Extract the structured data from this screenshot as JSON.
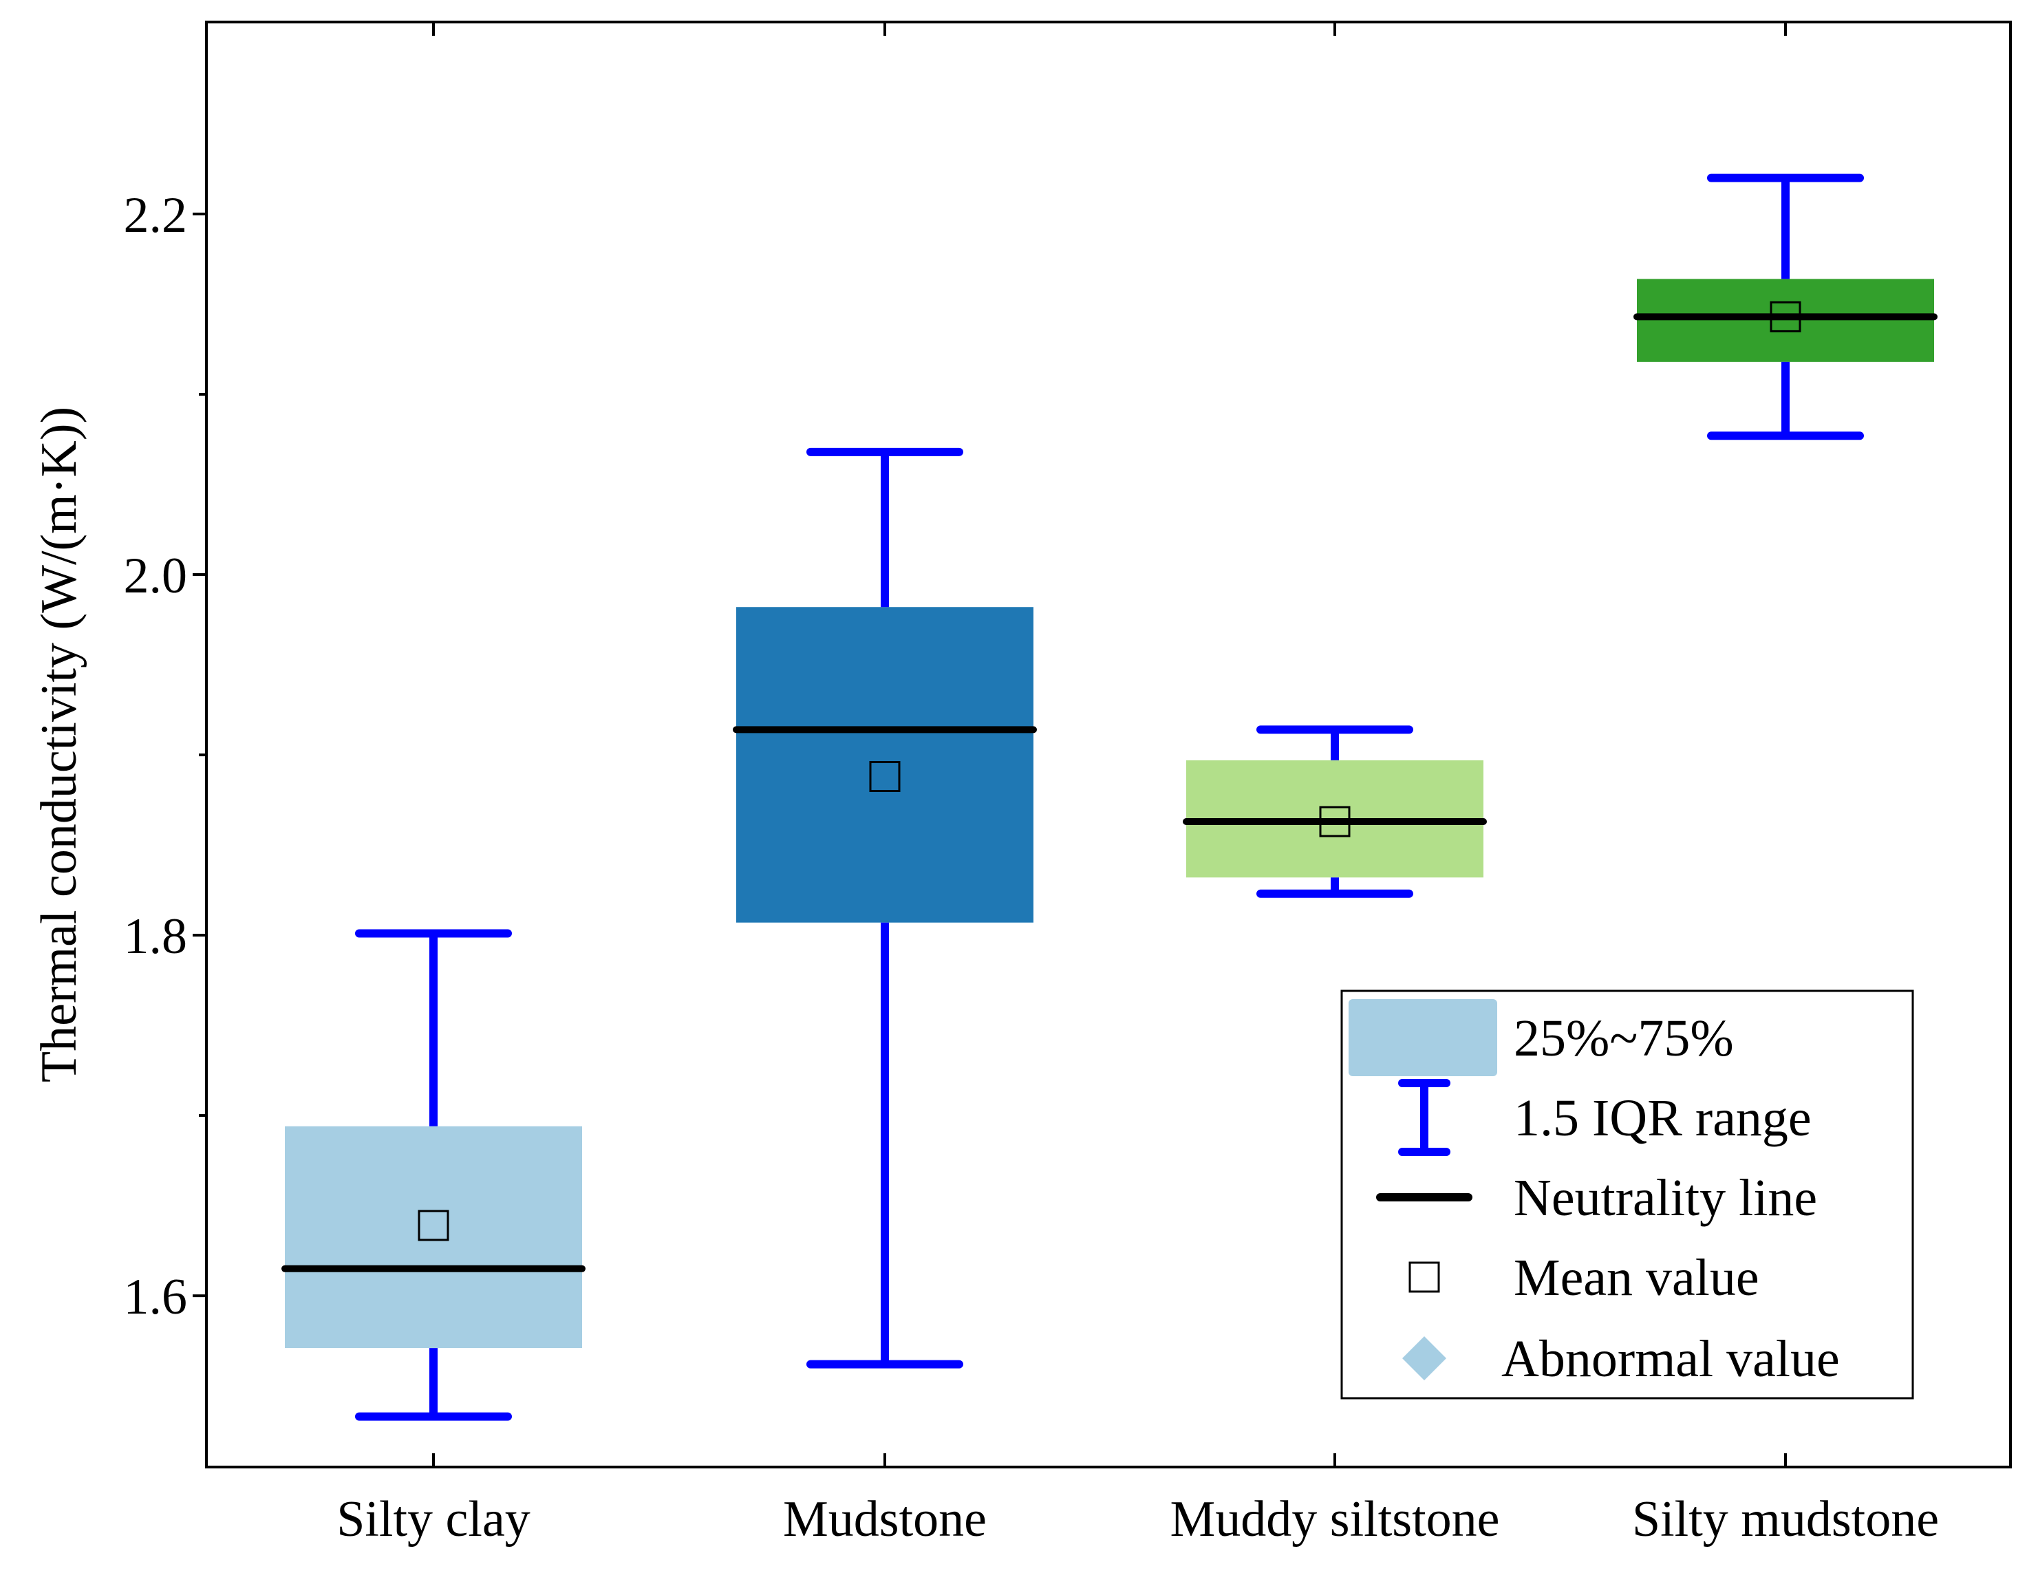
{
  "chart_data": {
    "type": "box",
    "ylabel": "Thermal conductivity (W/(m·K))",
    "xlabel": "",
    "ylim": [
      1.505,
      2.3065
    ],
    "yticks": [
      1.6,
      1.8,
      2.0,
      2.2
    ],
    "ytick_labels": [
      "1.6",
      "1.8",
      "2.0",
      "2.2"
    ],
    "categories": [
      "Silty clay",
      "Mudstone",
      "Muddy siltstone",
      "Silty mudstone"
    ],
    "boxes": [
      {
        "name": "Silty clay",
        "whisker_low": 1.533,
        "q1": 1.571,
        "median": 1.615,
        "mean": 1.639,
        "q3": 1.694,
        "whisker_high": 1.801,
        "color": "#a6cee3"
      },
      {
        "name": "Mudstone",
        "whisker_low": 1.562,
        "q1": 1.807,
        "median": 1.914,
        "mean": 1.888,
        "q3": 1.982,
        "whisker_high": 2.068,
        "color": "#1f78b4"
      },
      {
        "name": "Muddy siltstone",
        "whisker_low": 1.823,
        "q1": 1.832,
        "median": 1.863,
        "mean": 1.863,
        "q3": 1.897,
        "whisker_high": 1.914,
        "color": "#b2df8a"
      },
      {
        "name": "Silty mudstone",
        "whisker_low": 2.077,
        "q1": 2.118,
        "median": 2.143,
        "mean": 2.143,
        "q3": 2.164,
        "whisker_high": 2.22,
        "color": "#33a02c"
      }
    ],
    "whisker_color": "#0000ff",
    "median_color": "#000000",
    "legend": {
      "position": "bottom-right",
      "entries": [
        {
          "label": "25%~75%",
          "kind": "box",
          "color": "#a6cee3"
        },
        {
          "label": "1.5 IQR range",
          "kind": "whisker",
          "color": "#0000ff"
        },
        {
          "label": "Neutrality line",
          "kind": "line",
          "color": "#000000"
        },
        {
          "label": "Mean value",
          "kind": "square",
          "color": "#000000"
        },
        {
          "label": "Abnormal value",
          "kind": "diamond",
          "color": "#a6cee3"
        }
      ]
    }
  }
}
